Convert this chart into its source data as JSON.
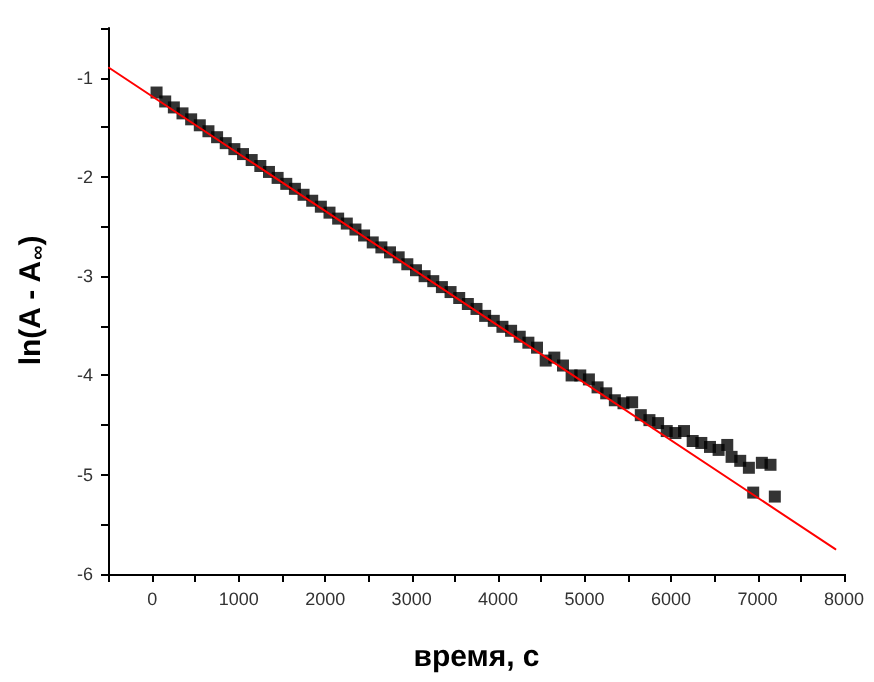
{
  "chart_data": {
    "type": "scatter",
    "xlabel": "время, с",
    "ylabel": "ln(A - A$_{∞}$)",
    "xlim": [
      -500,
      8000
    ],
    "ylim": [
      -6,
      -0.5
    ],
    "xticks": [
      {
        "value": -500,
        "label": null
      },
      0,
      {
        "value": 500,
        "label": null
      },
      1000,
      {
        "value": 1500,
        "label": null
      },
      2000,
      {
        "value": 2500,
        "label": null
      },
      3000,
      {
        "value": 3500,
        "label": null
      },
      4000,
      {
        "value": 4500,
        "label": null
      },
      5000,
      {
        "value": 5500,
        "label": null
      },
      6000,
      {
        "value": 6500,
        "label": null
      },
      7000,
      {
        "value": 7500,
        "label": null
      },
      8000
    ],
    "yticks": [
      -6,
      {
        "value": -5.5,
        "label": null
      },
      -5,
      {
        "value": -4.5,
        "label": null
      },
      -4,
      {
        "value": -3.5,
        "label": null
      },
      -3,
      {
        "value": -2.5,
        "label": null
      },
      -2,
      {
        "value": -1.5,
        "label": null
      },
      -1,
      {
        "value": -0.5,
        "label": null
      }
    ],
    "grid": false,
    "series": [
      {
        "marker": "square",
        "color": "#000000",
        "x": [
          50,
          150,
          250,
          350,
          450,
          550,
          650,
          750,
          850,
          950,
          1050,
          1150,
          1250,
          1350,
          1450,
          1550,
          1650,
          1750,
          1850,
          1950,
          2050,
          2150,
          2250,
          2350,
          2450,
          2550,
          2650,
          2750,
          2850,
          2950,
          3050,
          3150,
          3250,
          3350,
          3450,
          3550,
          3650,
          3750,
          3850,
          3950,
          4050,
          4150,
          4250,
          4350,
          4450,
          4550,
          4650,
          4750,
          4850,
          4950,
          5050,
          5150,
          5250,
          5350,
          5450,
          5550,
          5650,
          5750,
          5850,
          5950,
          6050,
          6150,
          6250,
          6350,
          6450,
          6550,
          6650,
          6700,
          6800,
          6900,
          6950,
          7050,
          7150,
          7200
        ],
        "values": [
          -1.15,
          -1.24,
          -1.3,
          -1.36,
          -1.42,
          -1.48,
          -1.54,
          -1.6,
          -1.66,
          -1.72,
          -1.77,
          -1.83,
          -1.89,
          -1.95,
          -2.01,
          -2.07,
          -2.12,
          -2.18,
          -2.24,
          -2.3,
          -2.36,
          -2.42,
          -2.47,
          -2.53,
          -2.59,
          -2.66,
          -2.71,
          -2.76,
          -2.81,
          -2.88,
          -2.94,
          -3,
          -3.05,
          -3.11,
          -3.16,
          -3.22,
          -3.28,
          -3.33,
          -3.4,
          -3.45,
          -3.51,
          -3.55,
          -3.61,
          -3.67,
          -3.72,
          -3.85,
          -3.82,
          -3.9,
          -4,
          -4,
          -4.04,
          -4.12,
          -4.18,
          -4.25,
          -4.28,
          -4.27,
          -4.4,
          -4.45,
          -4.48,
          -4.56,
          -4.58,
          -4.56,
          -4.66,
          -4.68,
          -4.72,
          -4.75,
          -4.7,
          -4.82,
          -4.86,
          -4.93,
          -5.18,
          -4.88,
          -4.9,
          -5.22
        ]
      },
      {
        "type": "line",
        "color": "#ff0000",
        "x": [
          -500,
          7900
        ],
        "values": [
          -0.9,
          -5.75
        ]
      }
    ]
  }
}
